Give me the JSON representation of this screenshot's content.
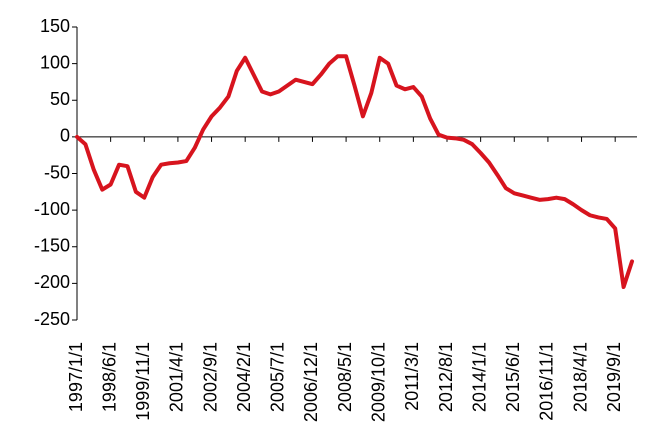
{
  "chart_data": {
    "type": "line",
    "categories": [
      "1997/1/1",
      null,
      null,
      null,
      "1998/6/1",
      null,
      null,
      null,
      "1999/11/1",
      null,
      null,
      null,
      "2001/4/1",
      null,
      null,
      null,
      "2002/9/1",
      null,
      null,
      null,
      "2004/2/1",
      null,
      null,
      null,
      "2005/7/1",
      null,
      null,
      null,
      "2006/12/1",
      null,
      null,
      null,
      "2008/5/1",
      null,
      null,
      null,
      "2009/10/1",
      null,
      null,
      null,
      "2011/3/1",
      null,
      null,
      null,
      "2012/8/1",
      null,
      null,
      null,
      "2014/1/1",
      null,
      null,
      null,
      "2015/6/1",
      null,
      null,
      null,
      "2016/11/1",
      null,
      null,
      null,
      "2018/4/1",
      null,
      null,
      null,
      "2019/9/1",
      null,
      null
    ],
    "series": [
      {
        "color": "#d7141e",
        "values": [
          0,
          -10,
          -45,
          -72,
          -65,
          -38,
          -40,
          -75,
          -83,
          -55,
          -38,
          -36,
          -35,
          -33,
          -15,
          10,
          28,
          40,
          55,
          90,
          108,
          85,
          62,
          58,
          62,
          70,
          78,
          75,
          72,
          85,
          100,
          110,
          110,
          70,
          28,
          60,
          108,
          100,
          70,
          65,
          68,
          55,
          25,
          3,
          -1,
          -2,
          -4,
          -10,
          -22,
          -35,
          -52,
          -70,
          -77,
          -80,
          -83,
          -86,
          -85,
          -83,
          -85,
          -92,
          -100,
          -107,
          -110,
          -112,
          -125,
          -205,
          -170
        ]
      }
    ],
    "ylim": [
      -250,
      150
    ],
    "yticks": [
      -250,
      -200,
      -150,
      -100,
      -50,
      0,
      50,
      100,
      150
    ]
  }
}
